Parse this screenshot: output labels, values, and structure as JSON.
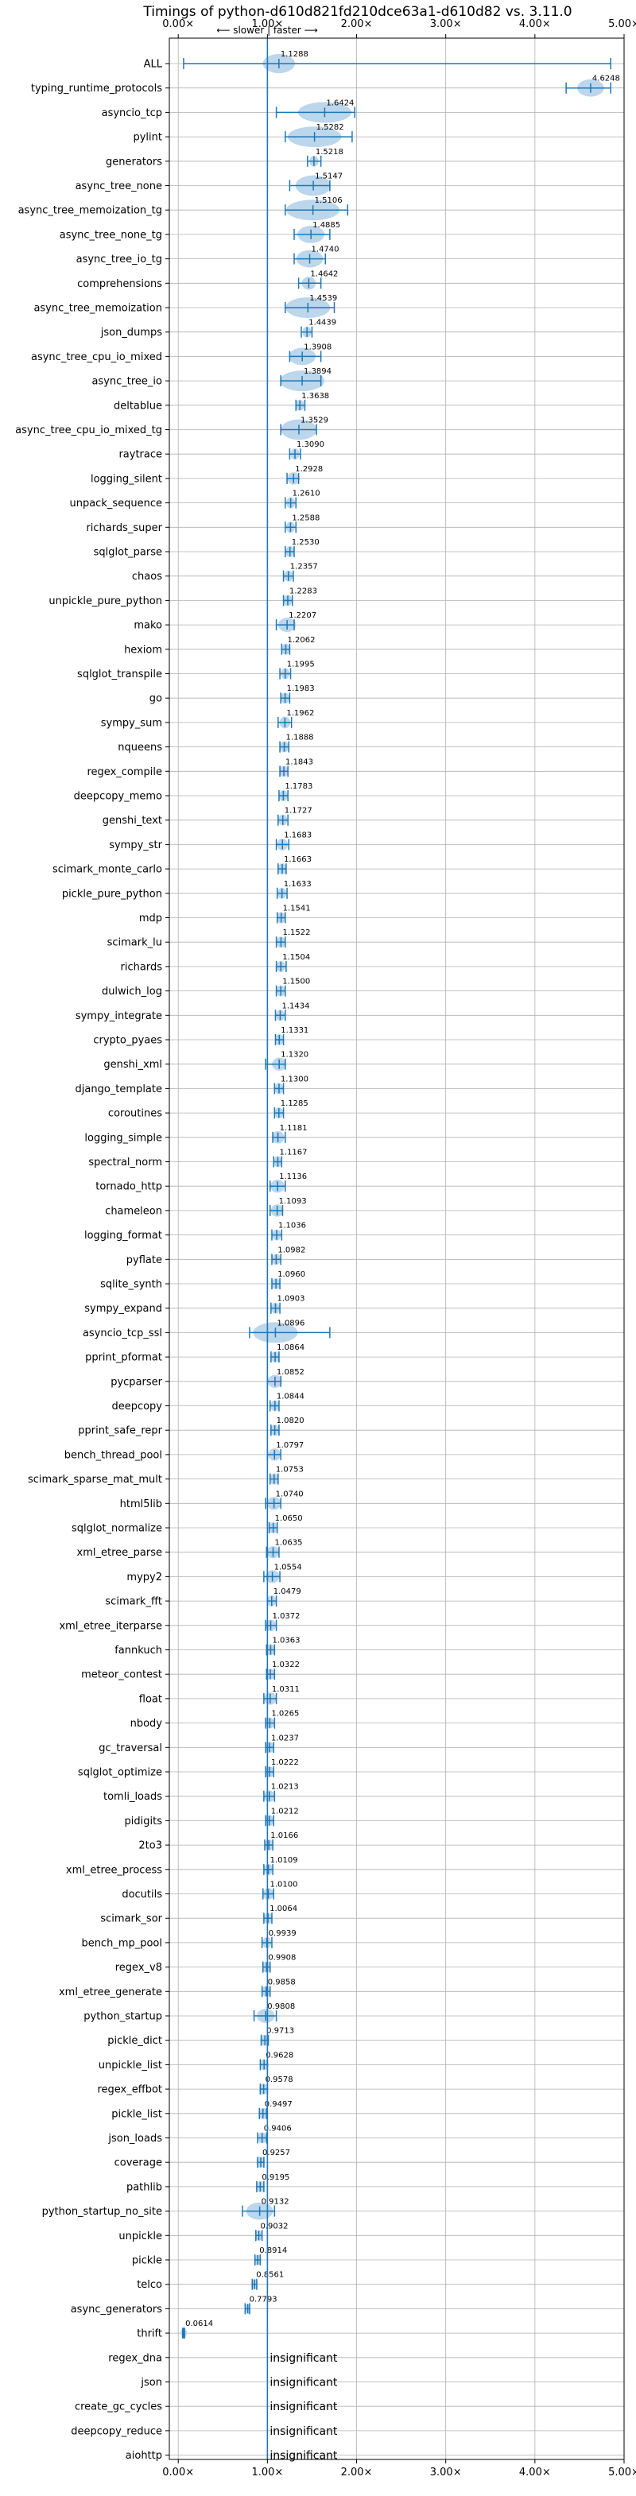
{
  "chart_data": {
    "type": "violin",
    "title": "Timings of python-d610d821fd210dce63a1-d610d82 vs. 3.11.0",
    "direction_note": "⟵ slower | faster ⟶",
    "xlim": [
      -0.1,
      5.0
    ],
    "x_ticks": [
      0,
      1,
      2,
      3,
      4,
      5
    ],
    "x_tick_labels": [
      "0.00×",
      "1.00×",
      "2.00×",
      "3.00×",
      "4.00×",
      "5.00×"
    ],
    "reference_line": 1.0,
    "grid": true,
    "accent_color": "#1f77b4",
    "violin_fill": "#a6c8e6",
    "insignificant_label": "insignificant",
    "benchmarks": [
      {
        "name": "ALL",
        "value": 1.1288,
        "label": "1.1288",
        "min": 0.06,
        "max": 4.85,
        "spread": 0.18
      },
      {
        "name": "typing_runtime_protocols",
        "value": 4.6248,
        "label": "4.6248",
        "min": 4.35,
        "max": 4.85,
        "spread": 0.15
      },
      {
        "name": "asyncio_tcp",
        "value": 1.6424,
        "label": "1.6424",
        "min": 1.1,
        "max": 1.98,
        "spread": 0.3
      },
      {
        "name": "pylint",
        "value": 1.5282,
        "label": "1.5282",
        "min": 1.2,
        "max": 1.95,
        "spread": 0.3
      },
      {
        "name": "generators",
        "value": 1.5218,
        "label": "1.5218",
        "min": 1.45,
        "max": 1.6,
        "spread": 0.05
      },
      {
        "name": "async_tree_none",
        "value": 1.5147,
        "label": "1.5147",
        "min": 1.25,
        "max": 1.7,
        "spread": 0.2
      },
      {
        "name": "async_tree_memoization_tg",
        "value": 1.5106,
        "label": "1.5106",
        "min": 1.2,
        "max": 1.9,
        "spread": 0.3
      },
      {
        "name": "async_tree_none_tg",
        "value": 1.4885,
        "label": "1.4885",
        "min": 1.3,
        "max": 1.7,
        "spread": 0.15
      },
      {
        "name": "async_tree_io_tg",
        "value": 1.474,
        "label": "1.4740",
        "min": 1.3,
        "max": 1.65,
        "spread": 0.15
      },
      {
        "name": "comprehensions",
        "value": 1.4642,
        "label": "1.4642",
        "min": 1.35,
        "max": 1.6,
        "spread": 0.08
      },
      {
        "name": "async_tree_memoization",
        "value": 1.4539,
        "label": "1.4539",
        "min": 1.2,
        "max": 1.75,
        "spread": 0.25
      },
      {
        "name": "json_dumps",
        "value": 1.4439,
        "label": "1.4439",
        "min": 1.38,
        "max": 1.5,
        "spread": 0.05
      },
      {
        "name": "async_tree_cpu_io_mixed",
        "value": 1.3908,
        "label": "1.3908",
        "min": 1.25,
        "max": 1.6,
        "spread": 0.15
      },
      {
        "name": "async_tree_io",
        "value": 1.3894,
        "label": "1.3894",
        "min": 1.15,
        "max": 1.6,
        "spread": 0.25
      },
      {
        "name": "deltablue",
        "value": 1.3638,
        "label": "1.3638",
        "min": 1.32,
        "max": 1.42,
        "spread": 0.05
      },
      {
        "name": "async_tree_cpu_io_mixed_tg",
        "value": 1.3529,
        "label": "1.3529",
        "min": 1.15,
        "max": 1.55,
        "spread": 0.2
      },
      {
        "name": "raytrace",
        "value": 1.309,
        "label": "1.3090",
        "min": 1.25,
        "max": 1.37,
        "spread": 0.05
      },
      {
        "name": "logging_silent",
        "value": 1.2928,
        "label": "1.2928",
        "min": 1.22,
        "max": 1.35,
        "spread": 0.07
      },
      {
        "name": "unpack_sequence",
        "value": 1.261,
        "label": "1.2610",
        "min": 1.2,
        "max": 1.32,
        "spread": 0.05
      },
      {
        "name": "richards_super",
        "value": 1.2588,
        "label": "1.2588",
        "min": 1.2,
        "max": 1.32,
        "spread": 0.05
      },
      {
        "name": "sqlglot_parse",
        "value": 1.253,
        "label": "1.2530",
        "min": 1.2,
        "max": 1.3,
        "spread": 0.05
      },
      {
        "name": "chaos",
        "value": 1.2357,
        "label": "1.2357",
        "min": 1.18,
        "max": 1.29,
        "spread": 0.05
      },
      {
        "name": "unpickle_pure_python",
        "value": 1.2283,
        "label": "1.2283",
        "min": 1.18,
        "max": 1.28,
        "spread": 0.05
      },
      {
        "name": "mako",
        "value": 1.2207,
        "label": "1.2207",
        "min": 1.1,
        "max": 1.3,
        "spread": 0.1
      },
      {
        "name": "hexiom",
        "value": 1.2062,
        "label": "1.2062",
        "min": 1.16,
        "max": 1.25,
        "spread": 0.05
      },
      {
        "name": "sqlglot_transpile",
        "value": 1.1995,
        "label": "1.1995",
        "min": 1.14,
        "max": 1.26,
        "spread": 0.05
      },
      {
        "name": "go",
        "value": 1.1983,
        "label": "1.1983",
        "min": 1.15,
        "max": 1.25,
        "spread": 0.05
      },
      {
        "name": "sympy_sum",
        "value": 1.1962,
        "label": "1.1962",
        "min": 1.12,
        "max": 1.27,
        "spread": 0.06
      },
      {
        "name": "nqueens",
        "value": 1.1888,
        "label": "1.1888",
        "min": 1.14,
        "max": 1.24,
        "spread": 0.05
      },
      {
        "name": "regex_compile",
        "value": 1.1843,
        "label": "1.1843",
        "min": 1.14,
        "max": 1.23,
        "spread": 0.05
      },
      {
        "name": "deepcopy_memo",
        "value": 1.1783,
        "label": "1.1783",
        "min": 1.13,
        "max": 1.23,
        "spread": 0.05
      },
      {
        "name": "genshi_text",
        "value": 1.1727,
        "label": "1.1727",
        "min": 1.12,
        "max": 1.23,
        "spread": 0.05
      },
      {
        "name": "sympy_str",
        "value": 1.1683,
        "label": "1.1683",
        "min": 1.1,
        "max": 1.24,
        "spread": 0.06
      },
      {
        "name": "scimark_monte_carlo",
        "value": 1.1663,
        "label": "1.1663",
        "min": 1.12,
        "max": 1.21,
        "spread": 0.05
      },
      {
        "name": "pickle_pure_python",
        "value": 1.1633,
        "label": "1.1633",
        "min": 1.11,
        "max": 1.22,
        "spread": 0.05
      },
      {
        "name": "mdp",
        "value": 1.1541,
        "label": "1.1541",
        "min": 1.11,
        "max": 1.2,
        "spread": 0.05
      },
      {
        "name": "scimark_lu",
        "value": 1.1522,
        "label": "1.1522",
        "min": 1.1,
        "max": 1.2,
        "spread": 0.05
      },
      {
        "name": "richards",
        "value": 1.1504,
        "label": "1.1504",
        "min": 1.1,
        "max": 1.21,
        "spread": 0.05
      },
      {
        "name": "dulwich_log",
        "value": 1.15,
        "label": "1.1500",
        "min": 1.1,
        "max": 1.2,
        "spread": 0.05
      },
      {
        "name": "sympy_integrate",
        "value": 1.1434,
        "label": "1.1434",
        "min": 1.09,
        "max": 1.2,
        "spread": 0.05
      },
      {
        "name": "crypto_pyaes",
        "value": 1.1331,
        "label": "1.1331",
        "min": 1.09,
        "max": 1.18,
        "spread": 0.05
      },
      {
        "name": "genshi_xml",
        "value": 1.132,
        "label": "1.1320",
        "min": 0.98,
        "max": 1.2,
        "spread": 0.08
      },
      {
        "name": "django_template",
        "value": 1.13,
        "label": "1.1300",
        "min": 1.08,
        "max": 1.18,
        "spread": 0.05
      },
      {
        "name": "coroutines",
        "value": 1.1285,
        "label": "1.1285",
        "min": 1.08,
        "max": 1.18,
        "spread": 0.05
      },
      {
        "name": "logging_simple",
        "value": 1.1181,
        "label": "1.1181",
        "min": 1.06,
        "max": 1.2,
        "spread": 0.07
      },
      {
        "name": "spectral_norm",
        "value": 1.1167,
        "label": "1.1167",
        "min": 1.07,
        "max": 1.16,
        "spread": 0.05
      },
      {
        "name": "tornado_http",
        "value": 1.1136,
        "label": "1.1136",
        "min": 1.03,
        "max": 1.2,
        "spread": 0.08
      },
      {
        "name": "chameleon",
        "value": 1.1093,
        "label": "1.1093",
        "min": 1.03,
        "max": 1.17,
        "spread": 0.07
      },
      {
        "name": "logging_format",
        "value": 1.1036,
        "label": "1.1036",
        "min": 1.05,
        "max": 1.16,
        "spread": 0.05
      },
      {
        "name": "pyflate",
        "value": 1.0982,
        "label": "1.0982",
        "min": 1.05,
        "max": 1.15,
        "spread": 0.05
      },
      {
        "name": "sqlite_synth",
        "value": 1.096,
        "label": "1.0960",
        "min": 1.05,
        "max": 1.14,
        "spread": 0.05
      },
      {
        "name": "sympy_expand",
        "value": 1.0903,
        "label": "1.0903",
        "min": 1.04,
        "max": 1.14,
        "spread": 0.05
      },
      {
        "name": "asyncio_tcp_ssl",
        "value": 1.0896,
        "label": "1.0896",
        "min": 0.8,
        "max": 1.7,
        "spread": 0.25
      },
      {
        "name": "pprint_pformat",
        "value": 1.0864,
        "label": "1.0864",
        "min": 1.04,
        "max": 1.13,
        "spread": 0.05
      },
      {
        "name": "pycparser",
        "value": 1.0852,
        "label": "1.0852",
        "min": 1.0,
        "max": 1.15,
        "spread": 0.08
      },
      {
        "name": "deepcopy",
        "value": 1.0844,
        "label": "1.0844",
        "min": 1.03,
        "max": 1.13,
        "spread": 0.05
      },
      {
        "name": "pprint_safe_repr",
        "value": 1.082,
        "label": "1.0820",
        "min": 1.04,
        "max": 1.13,
        "spread": 0.05
      },
      {
        "name": "bench_thread_pool",
        "value": 1.0797,
        "label": "1.0797",
        "min": 1.0,
        "max": 1.15,
        "spread": 0.07
      },
      {
        "name": "scimark_sparse_mat_mult",
        "value": 1.0753,
        "label": "1.0753",
        "min": 1.03,
        "max": 1.12,
        "spread": 0.05
      },
      {
        "name": "html5lib",
        "value": 1.074,
        "label": "1.0740",
        "min": 0.98,
        "max": 1.15,
        "spread": 0.08
      },
      {
        "name": "sqlglot_normalize",
        "value": 1.065,
        "label": "1.0650",
        "min": 1.02,
        "max": 1.11,
        "spread": 0.05
      },
      {
        "name": "xml_etree_parse",
        "value": 1.0635,
        "label": "1.0635",
        "min": 0.99,
        "max": 1.13,
        "spread": 0.07
      },
      {
        "name": "mypy2",
        "value": 1.0554,
        "label": "1.0554",
        "min": 0.96,
        "max": 1.14,
        "spread": 0.08
      },
      {
        "name": "scimark_fft",
        "value": 1.0479,
        "label": "1.0479",
        "min": 1.0,
        "max": 1.1,
        "spread": 0.05
      },
      {
        "name": "xml_etree_iterparse",
        "value": 1.0372,
        "label": "1.0372",
        "min": 0.98,
        "max": 1.1,
        "spread": 0.06
      },
      {
        "name": "fannkuch",
        "value": 1.0363,
        "label": "1.0363",
        "min": 0.99,
        "max": 1.08,
        "spread": 0.05
      },
      {
        "name": "meteor_contest",
        "value": 1.0322,
        "label": "1.0322",
        "min": 0.99,
        "max": 1.08,
        "spread": 0.05
      },
      {
        "name": "float",
        "value": 1.0311,
        "label": "1.0311",
        "min": 0.96,
        "max": 1.1,
        "spread": 0.07
      },
      {
        "name": "nbody",
        "value": 1.0265,
        "label": "1.0265",
        "min": 0.98,
        "max": 1.08,
        "spread": 0.05
      },
      {
        "name": "gc_traversal",
        "value": 1.0237,
        "label": "1.0237",
        "min": 0.98,
        "max": 1.07,
        "spread": 0.05
      },
      {
        "name": "sqlglot_optimize",
        "value": 1.0222,
        "label": "1.0222",
        "min": 0.98,
        "max": 1.07,
        "spread": 0.05
      },
      {
        "name": "tomli_loads",
        "value": 1.0213,
        "label": "1.0213",
        "min": 0.96,
        "max": 1.08,
        "spread": 0.06
      },
      {
        "name": "pidigits",
        "value": 1.0212,
        "label": "1.0212",
        "min": 0.98,
        "max": 1.07,
        "spread": 0.05
      },
      {
        "name": "2to3",
        "value": 1.0166,
        "label": "1.0166",
        "min": 0.97,
        "max": 1.06,
        "spread": 0.05
      },
      {
        "name": "xml_etree_process",
        "value": 1.0109,
        "label": "1.0109",
        "min": 0.96,
        "max": 1.06,
        "spread": 0.05
      },
      {
        "name": "docutils",
        "value": 1.01,
        "label": "1.0100",
        "min": 0.95,
        "max": 1.07,
        "spread": 0.06
      },
      {
        "name": "scimark_sor",
        "value": 1.0064,
        "label": "1.0064",
        "min": 0.96,
        "max": 1.05,
        "spread": 0.05
      },
      {
        "name": "bench_mp_pool",
        "value": 0.9939,
        "label": "0.9939",
        "min": 0.94,
        "max": 1.05,
        "spread": 0.05
      },
      {
        "name": "regex_v8",
        "value": 0.9908,
        "label": "0.9908",
        "min": 0.95,
        "max": 1.03,
        "spread": 0.05
      },
      {
        "name": "xml_etree_generate",
        "value": 0.9858,
        "label": "0.9858",
        "min": 0.94,
        "max": 1.03,
        "spread": 0.05
      },
      {
        "name": "python_startup",
        "value": 0.9808,
        "label": "0.9808",
        "min": 0.85,
        "max": 1.1,
        "spread": 0.1
      },
      {
        "name": "pickle_dict",
        "value": 0.9713,
        "label": "0.9713",
        "min": 0.93,
        "max": 1.01,
        "spread": 0.05
      },
      {
        "name": "unpickle_list",
        "value": 0.9628,
        "label": "0.9628",
        "min": 0.92,
        "max": 1.0,
        "spread": 0.05
      },
      {
        "name": "regex_effbot",
        "value": 0.9578,
        "label": "0.9578",
        "min": 0.92,
        "max": 1.0,
        "spread": 0.05
      },
      {
        "name": "pickle_list",
        "value": 0.9497,
        "label": "0.9497",
        "min": 0.91,
        "max": 0.99,
        "spread": 0.05
      },
      {
        "name": "json_loads",
        "value": 0.9406,
        "label": "0.9406",
        "min": 0.89,
        "max": 0.99,
        "spread": 0.05
      },
      {
        "name": "coverage",
        "value": 0.9257,
        "label": "0.9257",
        "min": 0.89,
        "max": 0.96,
        "spread": 0.05
      },
      {
        "name": "pathlib",
        "value": 0.9195,
        "label": "0.9195",
        "min": 0.88,
        "max": 0.96,
        "spread": 0.05
      },
      {
        "name": "python_startup_no_site",
        "value": 0.9132,
        "label": "0.9132",
        "min": 0.72,
        "max": 1.08,
        "spread": 0.15
      },
      {
        "name": "unpickle",
        "value": 0.9032,
        "label": "0.9032",
        "min": 0.87,
        "max": 0.94,
        "spread": 0.04
      },
      {
        "name": "pickle",
        "value": 0.8914,
        "label": "0.8914",
        "min": 0.86,
        "max": 0.92,
        "spread": 0.04
      },
      {
        "name": "telco",
        "value": 0.8561,
        "label": "0.8561",
        "min": 0.83,
        "max": 0.88,
        "spread": 0.04
      },
      {
        "name": "async_generators",
        "value": 0.7793,
        "label": "0.7793",
        "min": 0.75,
        "max": 0.8,
        "spread": 0.03
      },
      {
        "name": "thrift",
        "value": 0.0614,
        "label": "0.0614",
        "min": 0.05,
        "max": 0.07,
        "spread": 0.02
      },
      {
        "name": "regex_dna",
        "value": null,
        "label": "",
        "insignificant": true
      },
      {
        "name": "json",
        "value": null,
        "label": "",
        "insignificant": true
      },
      {
        "name": "create_gc_cycles",
        "value": null,
        "label": "",
        "insignificant": true
      },
      {
        "name": "deepcopy_reduce",
        "value": null,
        "label": "",
        "insignificant": true
      },
      {
        "name": "aiohttp",
        "value": null,
        "label": "",
        "insignificant": true
      }
    ]
  }
}
